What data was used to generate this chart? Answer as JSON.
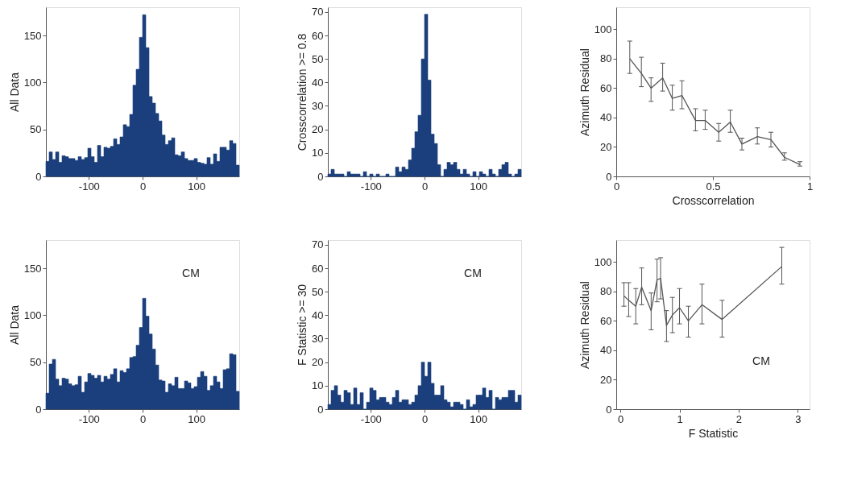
{
  "chart_data": [
    {
      "type": "histogram",
      "ylabel": "All Data",
      "color": "#1b3f7c",
      "grid": false,
      "xlim": [
        -180,
        180
      ],
      "xticks": [
        -100,
        0,
        100
      ],
      "ylim": [
        0,
        180
      ],
      "yticks": [
        0,
        50,
        100,
        150
      ],
      "bins": [
        -180,
        -174,
        -168,
        -162,
        -156,
        -150,
        -144,
        -138,
        -132,
        -126,
        -120,
        -114,
        -108,
        -102,
        -96,
        -90,
        -84,
        -78,
        -72,
        -66,
        -60,
        -54,
        -48,
        -42,
        -36,
        -30,
        -24,
        -18,
        -12,
        -6,
        0,
        6,
        12,
        18,
        24,
        30,
        36,
        42,
        48,
        54,
        60,
        66,
        72,
        78,
        84,
        90,
        96,
        102,
        108,
        114,
        120,
        126,
        132,
        138,
        144,
        150,
        156,
        162,
        168,
        174,
        180
      ],
      "values": [
        16,
        26,
        18,
        26,
        15,
        22,
        21,
        19,
        19,
        17,
        21,
        18,
        20,
        30,
        21,
        15,
        33,
        21,
        31,
        30,
        32,
        40,
        34,
        42,
        55,
        53,
        66,
        97,
        114,
        148,
        172,
        137,
        85,
        78,
        67,
        59,
        44,
        34,
        38,
        41,
        23,
        22,
        26,
        19,
        17,
        17,
        19,
        15,
        14,
        13,
        20,
        13,
        24,
        16,
        31,
        31,
        28,
        38,
        35,
        12
      ]
    },
    {
      "type": "histogram",
      "ylabel": "Crosscorrelation >= 0.8",
      "color": "#1b3f7c",
      "grid": false,
      "xlim": [
        -180,
        180
      ],
      "xticks": [
        -100,
        0,
        100
      ],
      "ylim": [
        0,
        72
      ],
      "yticks": [
        0,
        10,
        20,
        30,
        40,
        50,
        60,
        70
      ],
      "bins": [
        -180,
        -174,
        -168,
        -162,
        -156,
        -150,
        -144,
        -138,
        -132,
        -126,
        -120,
        -114,
        -108,
        -102,
        -96,
        -90,
        -84,
        -78,
        -72,
        -66,
        -60,
        -54,
        -48,
        -42,
        -36,
        -30,
        -24,
        -18,
        -12,
        -6,
        0,
        6,
        12,
        18,
        24,
        30,
        36,
        42,
        48,
        54,
        60,
        66,
        72,
        78,
        84,
        90,
        96,
        102,
        108,
        114,
        120,
        126,
        132,
        138,
        144,
        150,
        156,
        162,
        168,
        174,
        180
      ],
      "values": [
        1,
        3,
        1,
        1,
        1,
        0,
        2,
        1,
        1,
        1,
        0,
        2,
        0,
        1,
        0,
        1,
        0,
        0,
        1,
        0,
        0,
        4,
        2,
        4,
        3,
        7,
        12,
        19,
        26,
        50,
        69,
        41,
        18,
        14,
        5,
        0,
        3,
        6,
        5,
        6,
        3,
        1,
        3,
        1,
        0,
        2,
        0,
        2,
        1,
        0,
        3,
        1,
        0,
        3,
        5,
        6,
        1,
        0,
        1,
        3
      ]
    },
    {
      "type": "line",
      "xlabel": "Crosscorrelation",
      "ylabel": "Azimuth Residual",
      "grid": false,
      "marker": "none",
      "line_style": "solid",
      "xlim": [
        0,
        1
      ],
      "xticks": [
        0,
        0.5,
        1
      ],
      "ylim": [
        0,
        115
      ],
      "yticks": [
        0,
        20,
        40,
        60,
        80,
        100
      ],
      "series": [
        {
          "color": "#555555",
          "x": [
            0.07,
            0.13,
            0.18,
            0.24,
            0.29,
            0.34,
            0.41,
            0.46,
            0.53,
            0.59,
            0.65,
            0.73,
            0.8,
            0.87,
            0.95
          ],
          "values": [
            80,
            70,
            60,
            67,
            53,
            55,
            38,
            38,
            30,
            37,
            22,
            27,
            25,
            13,
            8
          ],
          "errors": [
            [
              70,
              92
            ],
            [
              61,
              81
            ],
            [
              51,
              67
            ],
            [
              58,
              77
            ],
            [
              45,
              62
            ],
            [
              46,
              65
            ],
            [
              31,
              46
            ],
            [
              32,
              45
            ],
            [
              24,
              36
            ],
            [
              30,
              45
            ],
            [
              18,
              26
            ],
            [
              22,
              33
            ],
            [
              20,
              30
            ],
            [
              11,
              16
            ],
            [
              7,
              10
            ]
          ]
        }
      ]
    },
    {
      "type": "histogram",
      "ylabel": "All Data",
      "color": "#1b3f7c",
      "grid": false,
      "annotations": [
        "CM"
      ],
      "xlim": [
        -180,
        180
      ],
      "xticks": [
        -100,
        0,
        100
      ],
      "ylim": [
        0,
        180
      ],
      "yticks": [
        0,
        50,
        100,
        150
      ],
      "bins": [
        -180,
        -174,
        -168,
        -162,
        -156,
        -150,
        -144,
        -138,
        -132,
        -126,
        -120,
        -114,
        -108,
        -102,
        -96,
        -90,
        -84,
        -78,
        -72,
        -66,
        -60,
        -54,
        -48,
        -42,
        -36,
        -30,
        -24,
        -18,
        -12,
        -6,
        0,
        6,
        12,
        18,
        24,
        30,
        36,
        42,
        48,
        54,
        60,
        66,
        72,
        78,
        84,
        90,
        96,
        102,
        108,
        114,
        120,
        126,
        132,
        138,
        144,
        150,
        156,
        162,
        168,
        174,
        180
      ],
      "values": [
        17,
        48,
        53,
        32,
        25,
        33,
        32,
        27,
        25,
        26,
        35,
        18,
        29,
        38,
        36,
        33,
        36,
        29,
        35,
        32,
        37,
        43,
        29,
        41,
        39,
        43,
        55,
        56,
        68,
        87,
        118,
        99,
        80,
        64,
        47,
        31,
        30,
        18,
        27,
        25,
        34,
        22,
        22,
        30,
        28,
        22,
        24,
        34,
        40,
        35,
        20,
        25,
        35,
        29,
        22,
        42,
        43,
        59,
        58,
        19
      ]
    },
    {
      "type": "histogram",
      "ylabel": "F Statistic >= 30",
      "color": "#1b3f7c",
      "grid": false,
      "annotations": [
        "CM"
      ],
      "xlim": [
        -180,
        180
      ],
      "xticks": [
        -100,
        0,
        100
      ],
      "ylim": [
        0,
        72
      ],
      "yticks": [
        0,
        10,
        20,
        30,
        40,
        50,
        60,
        70
      ],
      "bins": [
        -180,
        -174,
        -168,
        -162,
        -156,
        -150,
        -144,
        -138,
        -132,
        -126,
        -120,
        -114,
        -108,
        -102,
        -96,
        -90,
        -84,
        -78,
        -72,
        -66,
        -60,
        -54,
        -48,
        -42,
        -36,
        -30,
        -24,
        -18,
        -12,
        -6,
        0,
        6,
        12,
        18,
        24,
        30,
        36,
        42,
        48,
        54,
        60,
        66,
        72,
        78,
        84,
        90,
        96,
        102,
        108,
        114,
        120,
        126,
        132,
        138,
        144,
        150,
        156,
        162,
        168,
        174,
        180
      ],
      "values": [
        2,
        8,
        10,
        6,
        3,
        8,
        7,
        2,
        9,
        2,
        7,
        0,
        3,
        9,
        8,
        4,
        5,
        5,
        3,
        2,
        5,
        8,
        3,
        4,
        4,
        2,
        3,
        6,
        10,
        20,
        14,
        20,
        11,
        6,
        6,
        10,
        4,
        3,
        1,
        3,
        3,
        2,
        0,
        4,
        1,
        2,
        6,
        6,
        9,
        5,
        8,
        0,
        5,
        4,
        5,
        5,
        8,
        8,
        3,
        6
      ]
    },
    {
      "type": "line",
      "xlabel": "F Statistic",
      "ylabel": "Azimuth Residual",
      "grid": false,
      "marker": "none",
      "line_style": "solid",
      "annotations": [
        "CM"
      ],
      "xlim": [
        -0.07,
        3.2
      ],
      "xticks": [
        0,
        1,
        2,
        3
      ],
      "ylim": [
        0,
        115
      ],
      "yticks": [
        0,
        20,
        40,
        60,
        80,
        100
      ],
      "series": [
        {
          "color": "#555555",
          "x": [
            0.06,
            0.14,
            0.26,
            0.36,
            0.52,
            0.62,
            0.68,
            0.78,
            0.88,
            1.0,
            1.15,
            1.38,
            1.72,
            2.73
          ],
          "values": [
            77,
            74,
            70,
            83,
            67,
            88,
            89,
            57,
            64,
            69,
            60,
            71,
            61,
            97
          ],
          "errors": [
            [
              70,
              86
            ],
            [
              63,
              86
            ],
            [
              58,
              82
            ],
            [
              71,
              96
            ],
            [
              54,
              79
            ],
            [
              73,
              102
            ],
            [
              75,
              103
            ],
            [
              46,
              67
            ],
            [
              52,
              76
            ],
            [
              58,
              82
            ],
            [
              49,
              70
            ],
            [
              58,
              85
            ],
            [
              49,
              74
            ],
            [
              85,
              110
            ]
          ]
        }
      ]
    }
  ]
}
